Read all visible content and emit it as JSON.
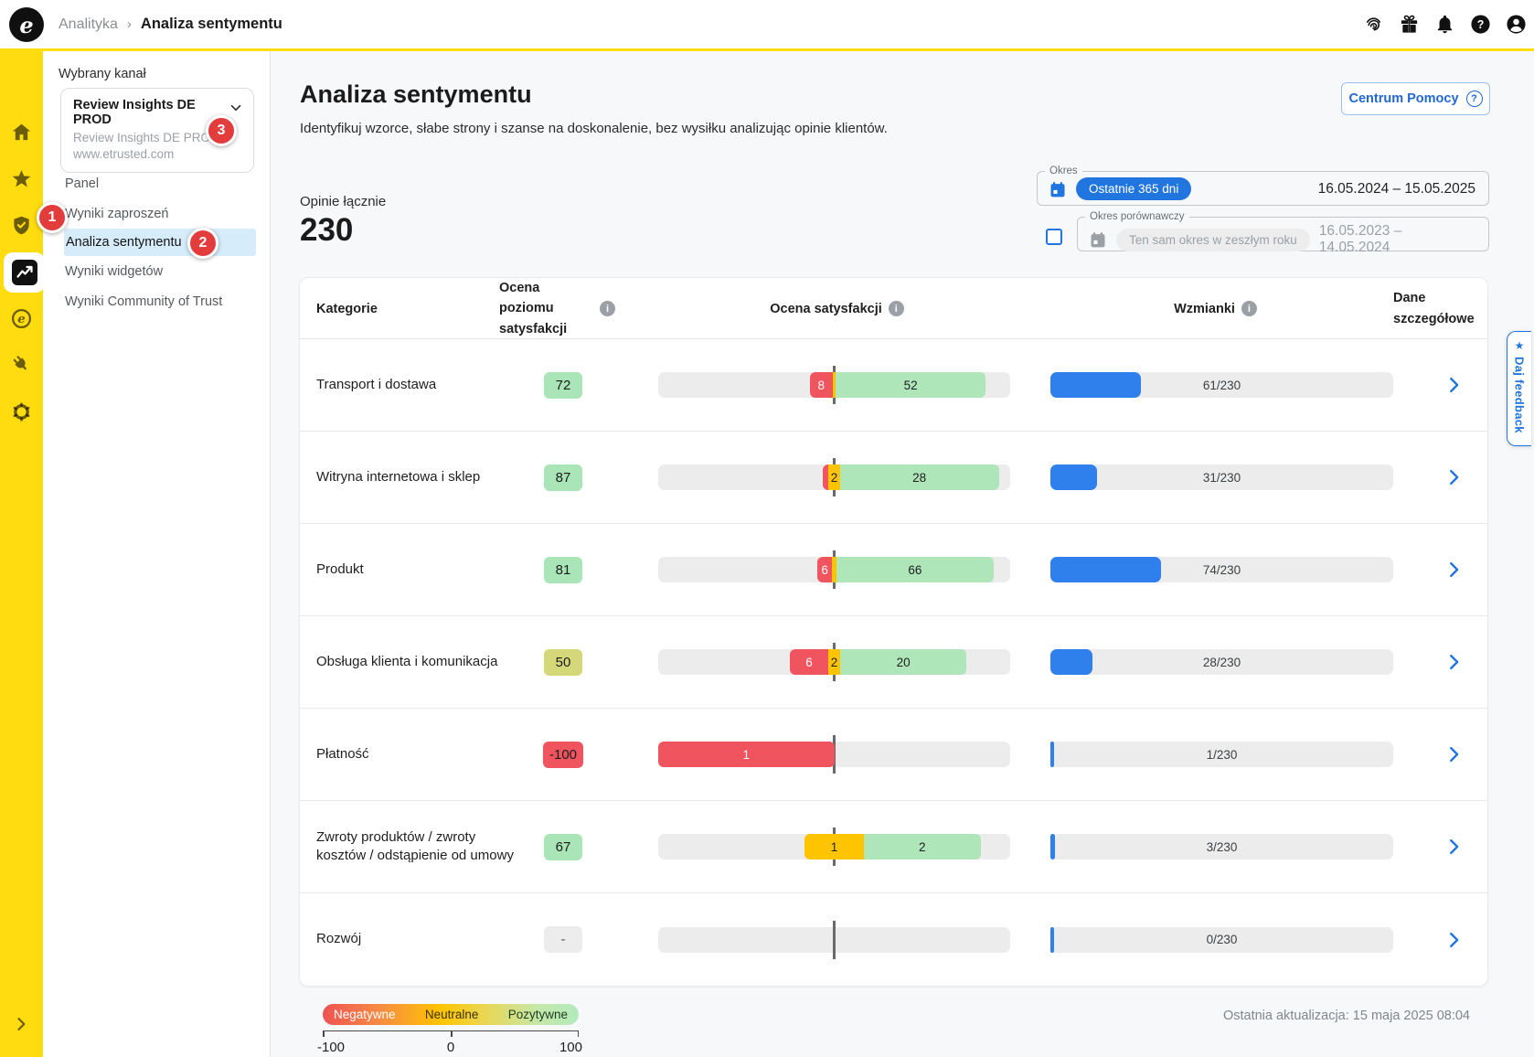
{
  "topbar": {
    "logo_letter": "e",
    "breadcrumb_section": "Analityka",
    "breadcrumb_separator": "›",
    "breadcrumb_current": "Analiza sentymentu"
  },
  "badges": {
    "step1": "1",
    "step2": "2",
    "step3": "3"
  },
  "sidebar": {
    "channel_label": "Wybrany kanał",
    "channel": {
      "name": "Review Insights DE PROD",
      "subtitle1": "Review Insights DE PROD",
      "subtitle2": "www.etrusted.com"
    },
    "items": [
      {
        "key": "panel",
        "label": "Panel",
        "active": false
      },
      {
        "key": "wyniki-zaproszen",
        "label": "Wyniki zaproszeń",
        "active": false
      },
      {
        "key": "analiza-sentymentu",
        "label": "Analiza sentymentu",
        "active": true
      },
      {
        "key": "wyniki-widgetow",
        "label": "Wyniki widgetów",
        "active": false
      },
      {
        "key": "wyniki-community-of-trust",
        "label": "Wyniki Community of Trust",
        "active": false
      }
    ]
  },
  "header": {
    "title": "Analiza sentymentu",
    "subtitle": "Identyfikuj wzorce, słabe strony i szanse na doskonalenie, bez wysiłku analizując opinie klientów.",
    "help_button": "Centrum Pomocy",
    "help_icon": "?"
  },
  "filters": {
    "period_label": "Okres",
    "period_preset": "Ostatnie 365 dni",
    "period_range": "16.05.2024 – 15.05.2025",
    "compare_label": "Okres porównawczy",
    "compare_preset": "Ten sam okres w zeszłym roku",
    "compare_range": "16.05.2023 – 14.05.2024"
  },
  "summary": {
    "label": "Opinie łącznie",
    "value": "230"
  },
  "table": {
    "total_reviews": 230,
    "headers": {
      "category": "Kategorie",
      "score": "Ocena poziomu satysfakcji",
      "satisfaction": "Ocena satysfakcji",
      "mentions": "Wzmianki",
      "details_line1": "Dane",
      "details_line2": "szczegółowe"
    },
    "rows": [
      {
        "category": "Transport i dostawa",
        "score": "72",
        "score_color": "green",
        "neg": 8,
        "neu": 1,
        "pos": 52,
        "neg_label": "8",
        "neu_label": "",
        "pos_label": "52",
        "mentions": 61,
        "mentions_label": "61/230"
      },
      {
        "category": "Witryna internetowa i sklep",
        "score": "87",
        "score_color": "green",
        "neg": 1,
        "neu": 2,
        "pos": 28,
        "neg_label": "",
        "neu_label": "2",
        "pos_label": "28",
        "mentions": 31,
        "mentions_label": "31/230"
      },
      {
        "category": "Produkt",
        "score": "81",
        "score_color": "green",
        "neg": 6,
        "neu": 2,
        "pos": 66,
        "neg_label": "6",
        "neu_label": "",
        "pos_label": "66",
        "mentions": 74,
        "mentions_label": "74/230"
      },
      {
        "category": "Obsługa klienta i komunikacja",
        "score": "50",
        "score_color": "olive",
        "neg": 6,
        "neu": 2,
        "pos": 20,
        "neg_label": "6",
        "neu_label": "2",
        "pos_label": "20",
        "mentions": 28,
        "mentions_label": "28/230"
      },
      {
        "category": "Płatność",
        "score": "-100",
        "score_color": "red",
        "neg": 1,
        "neu": 0,
        "pos": 0,
        "neg_label": "1",
        "neu_label": "",
        "pos_label": "",
        "mentions": 1,
        "mentions_label": "1/230"
      },
      {
        "category": "Zwroty produktów / zwroty kosztów / odstąpienie od umowy",
        "score": "67",
        "score_color": "green",
        "neg": 0,
        "neu": 1,
        "pos": 2,
        "neg_label": "",
        "neu_label": "1",
        "pos_label": "2",
        "mentions": 3,
        "mentions_label": "3/230"
      },
      {
        "category": "Rozwój",
        "score": "-",
        "score_color": "gray",
        "neg": 0,
        "neu": 0,
        "pos": 0,
        "neg_label": "",
        "neu_label": "",
        "pos_label": "",
        "mentions": 0,
        "mentions_label": "0/230"
      }
    ]
  },
  "legend": {
    "negative": "Negatywne",
    "neutral": "Neutralne",
    "positive": "Pozytywne",
    "min": "-100",
    "mid": "0",
    "max": "100"
  },
  "footer": {
    "last_update": "Ostatnia aktualizacja: 15 maja 2025 08:04"
  },
  "feedback_tab": {
    "star": "★",
    "label": "Daj feedback"
  },
  "colors": {
    "brand_yellow": "#FFDC0F",
    "interactive_blue": "#2075DF",
    "mentions_blue": "#2F80ED",
    "negative_red": "#F0545F",
    "neutral_amber": "#FFC400",
    "positive_green": "#AEE6BA",
    "badge_red": "#E23C3C",
    "active_menu_blue": "#D6ECFA"
  }
}
